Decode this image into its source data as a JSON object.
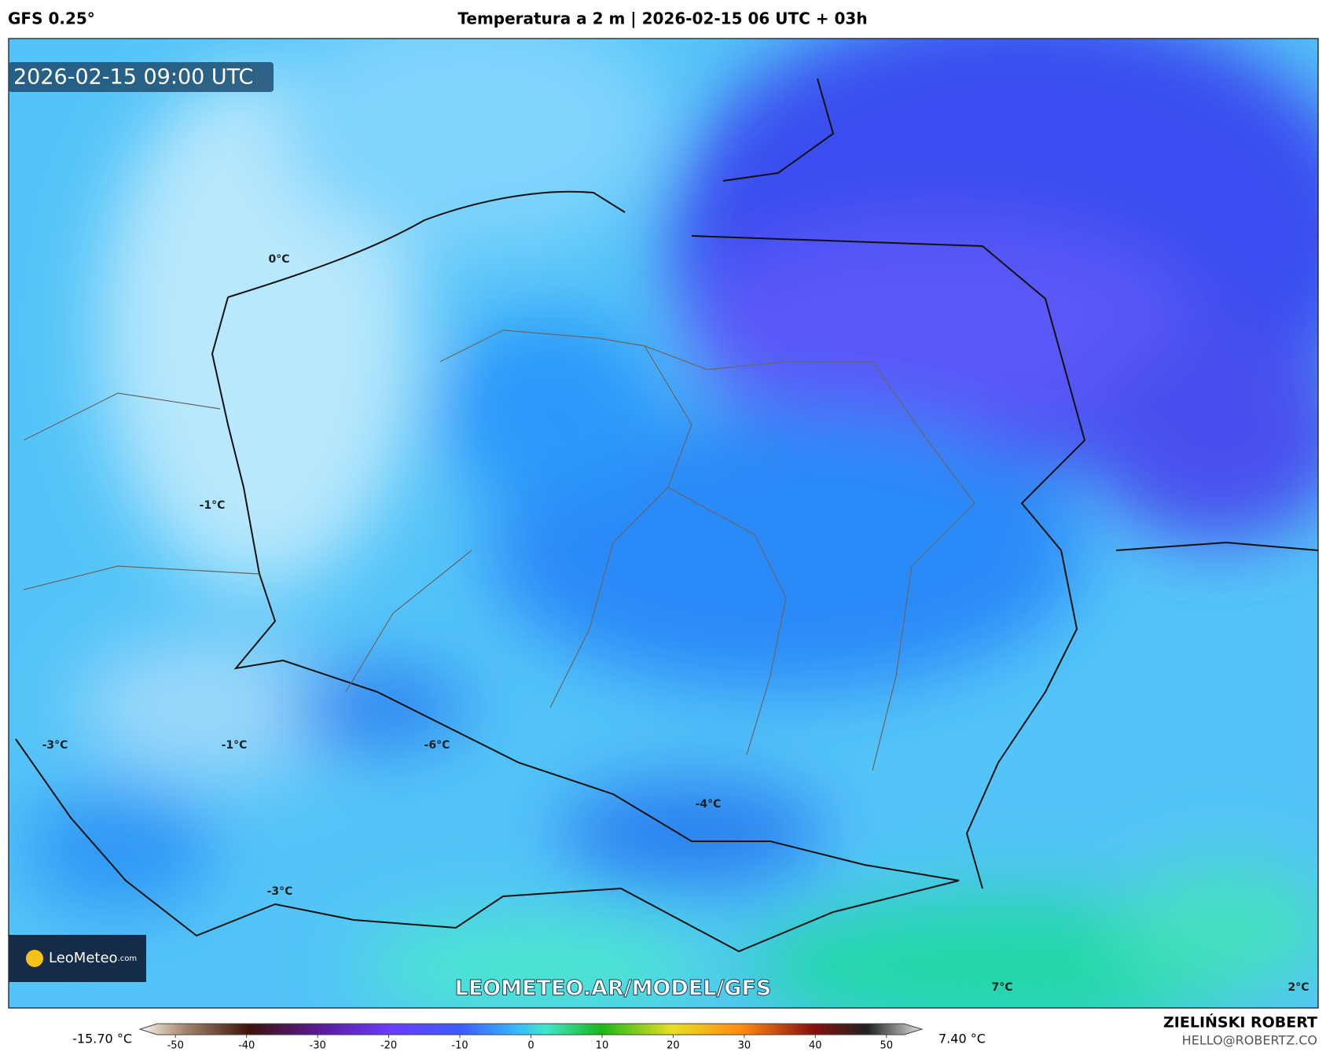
{
  "header": {
    "model": "GFS 0.25°",
    "title": "Temperatura a 2 m | 2026-02-15 06 UTC + 03h"
  },
  "map": {
    "timestamp": "2026-02-15 09:00 UTC",
    "labels": [
      "0°C",
      "-1°C",
      "-1°C",
      "-3°C",
      "-6°C",
      "-4°C",
      "-3°C",
      "7°C",
      "2°C"
    ],
    "logo": "LeoMeteo",
    "logo_suffix": ".com",
    "watermark": "LEOMETEO.AR/MODEL/GFS"
  },
  "colorbar": {
    "min_label": "-15.70 °C",
    "max_label": "7.40 °C",
    "lim": [
      -55,
      55
    ],
    "ticks": [
      -50,
      -40,
      -30,
      -20,
      -10,
      0,
      10,
      20,
      30,
      40,
      50
    ]
  },
  "footer": {
    "author": "ZIELIŃSKI ROBERT",
    "contact": "HELLO@ROBERTZ.CO"
  }
}
